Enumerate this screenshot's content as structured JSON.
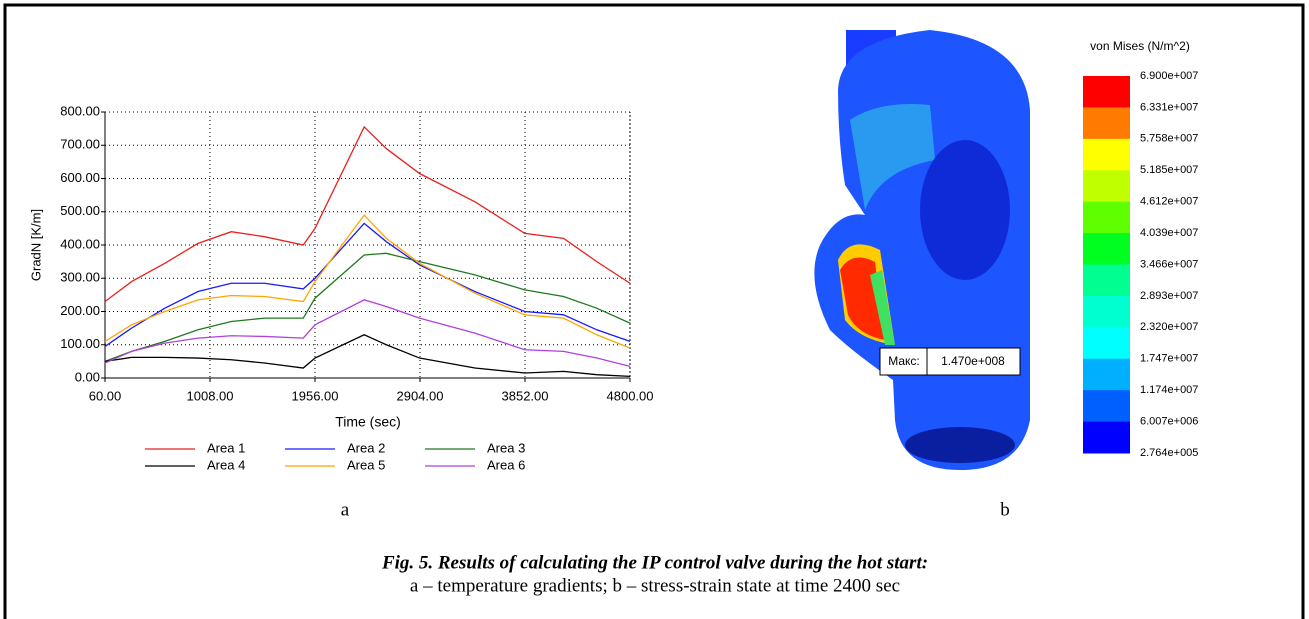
{
  "chart_data": {
    "type": "line",
    "x_label": "Time (sec)",
    "y_label": "GradN [K/m]",
    "x": [
      60,
      300,
      600,
      900,
      1200,
      1500,
      1850,
      1956,
      2400,
      2600,
      2900,
      3400,
      3850,
      4200,
      4500,
      4800
    ],
    "series": [
      {
        "name": "Area 1",
        "color": "#e8201c",
        "values": [
          230,
          290,
          345,
          405,
          440,
          425,
          400,
          450,
          755,
          690,
          615,
          530,
          435,
          420,
          350,
          285
        ]
      },
      {
        "name": "Area 2",
        "color": "#1a1aff",
        "values": [
          95,
          150,
          210,
          260,
          285,
          285,
          268,
          300,
          465,
          410,
          340,
          260,
          200,
          190,
          145,
          110
        ]
      },
      {
        "name": "Area 3",
        "color": "#1f7a1f",
        "values": [
          50,
          80,
          110,
          145,
          170,
          180,
          180,
          240,
          370,
          375,
          350,
          310,
          265,
          245,
          210,
          165
        ]
      },
      {
        "name": "Area 4",
        "color": "#000000",
        "values": [
          50,
          62,
          62,
          60,
          55,
          45,
          30,
          60,
          130,
          100,
          60,
          30,
          15,
          20,
          10,
          5
        ]
      },
      {
        "name": "Area 5",
        "color": "#ffa500",
        "values": [
          110,
          160,
          200,
          235,
          248,
          245,
          230,
          290,
          490,
          420,
          345,
          255,
          190,
          180,
          130,
          90
        ]
      },
      {
        "name": "Area 6",
        "color": "#b040e0",
        "values": [
          45,
          80,
          105,
          120,
          127,
          125,
          120,
          160,
          235,
          215,
          180,
          135,
          85,
          80,
          60,
          35
        ]
      }
    ],
    "xlim": [
      60,
      4800
    ],
    "xticks": [
      {
        "value": 60,
        "label": "60.00"
      },
      {
        "value": 1008,
        "label": "1008.00"
      },
      {
        "value": 1956,
        "label": "1956.00"
      },
      {
        "value": 2904,
        "label": "2904.00"
      },
      {
        "value": 3852,
        "label": "3852.00"
      },
      {
        "value": 4800,
        "label": "4800.00"
      }
    ],
    "ylim": [
      0,
      800
    ],
    "yticks": [
      {
        "value": 0,
        "label": "0.00"
      },
      {
        "value": 100,
        "label": "100.00"
      },
      {
        "value": 200,
        "label": "200.00"
      },
      {
        "value": 300,
        "label": "300.00"
      },
      {
        "value": 400,
        "label": "400.00"
      },
      {
        "value": 500,
        "label": "500.00"
      },
      {
        "value": 600,
        "label": "600.00"
      },
      {
        "value": 700,
        "label": "700.00"
      },
      {
        "value": 800,
        "label": "800.00"
      }
    ],
    "grid": true
  },
  "colorbar": {
    "title": "von Mises (N/m^2)",
    "labels": [
      "6.900e+007",
      "6.331e+007",
      "5.758e+007",
      "5.185e+007",
      "4.612e+007",
      "4.039e+007",
      "3.466e+007",
      "2.893e+007",
      "2.320e+007",
      "1.747e+007",
      "1.174e+007",
      "6.007e+006",
      "2.764e+005"
    ]
  },
  "probe": {
    "label": "Макс:",
    "value": "1.470e+008"
  },
  "panels": {
    "a": "a",
    "b": "b"
  },
  "caption": {
    "title": "Fig. 5. Results of calculating the IP control valve during the hot start:",
    "text": "a – temperature gradients; b – stress-strain state at time 2400 sec"
  }
}
